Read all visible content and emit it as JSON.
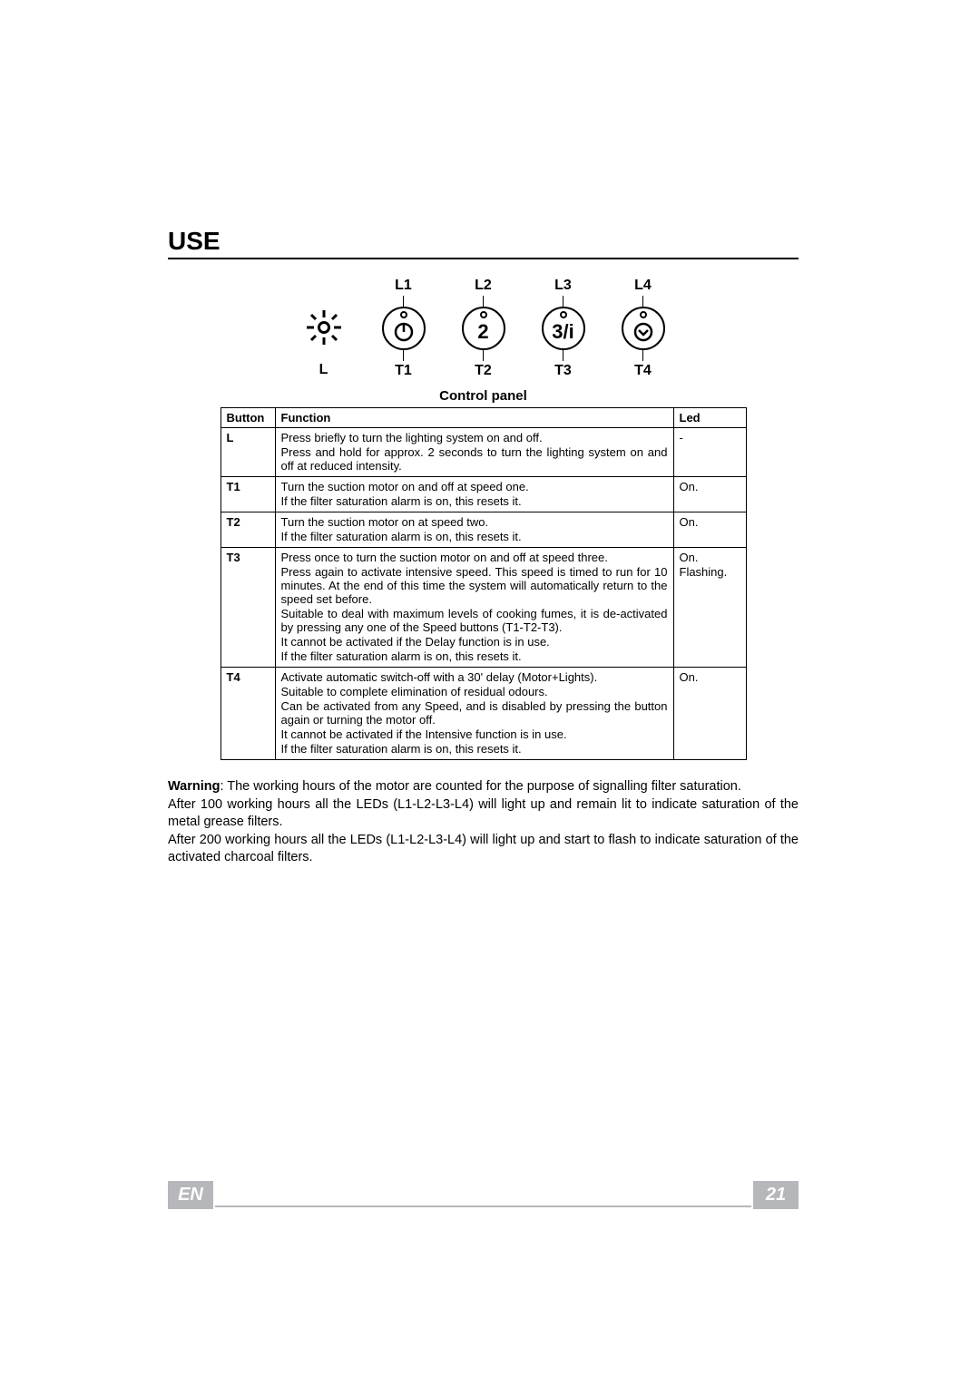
{
  "section_title": "USE",
  "diagram": {
    "led_labels": [
      "L1",
      "L2",
      "L3",
      "L4"
    ],
    "btn_labels": [
      "L",
      "T1",
      "T2",
      "T3",
      "T4"
    ],
    "circle_glyphs": [
      "①",
      "2",
      "3/i",
      "⌄"
    ]
  },
  "table": {
    "title": "Control panel",
    "headers": {
      "button": "Button",
      "function": "Function",
      "led": "Led"
    },
    "rows": [
      {
        "button": "L",
        "func": [
          "Press briefly to turn the lighting system on and off.",
          "Press and hold for approx. 2 seconds to turn the lighting system on and off at reduced intensity."
        ],
        "led": [
          "-",
          ""
        ]
      },
      {
        "button": "T1",
        "func": [
          "Turn the suction motor on and off at speed one.",
          "If the filter saturation alarm is on, this resets it."
        ],
        "led": [
          "On.",
          ""
        ]
      },
      {
        "button": "T2",
        "func": [
          "Turn the suction motor on at speed two.",
          "If the filter saturation alarm is on, this resets it."
        ],
        "led": [
          "On.",
          ""
        ]
      },
      {
        "button": "T3",
        "func": [
          "Press once to turn the suction motor on and off at speed three.",
          "Press again to activate intensive speed. This speed is timed to run for 10 minutes. At the end of this time the system will automatically return to the speed set before.",
          "Suitable to deal with maximum levels of cooking fumes, it is de-activated by pressing any one of the Speed buttons (T1-T2-T3).",
          "It cannot be activated if the Delay function is in use.",
          "If the filter saturation alarm is on, this resets it."
        ],
        "led": [
          "On.",
          "Flashing.",
          "",
          "",
          ""
        ]
      },
      {
        "button": "T4",
        "func": [
          "Activate automatic switch-off with a 30' delay (Motor+Lights).",
          "Suitable to complete elimination of residual odours.",
          "Can be activated from any Speed, and is disabled by pressing the button again or turning the motor off.",
          "It cannot be activated if the Intensive function is in use.",
          "If the filter saturation alarm is on, this resets it."
        ],
        "led": [
          "On.",
          "",
          "",
          "",
          ""
        ]
      }
    ]
  },
  "warning": {
    "label": "Warning",
    "text1": ": The working hours of the motor are counted for the purpose of signalling filter saturation.",
    "text2": "After 100 working hours all the LEDs (L1-L2-L3-L4) will light up and remain lit to indicate saturation of the metal grease filters.",
    "text3": "After 200 working hours all the LEDs (L1-L2-L3-L4) will light up and start to flash to indicate saturation of the activated charcoal filters."
  },
  "footer": {
    "lang": "EN",
    "page": "21"
  },
  "colors": {
    "footer_box_bg": "#b6b7bb",
    "footer_box_fg": "#ffffff"
  }
}
